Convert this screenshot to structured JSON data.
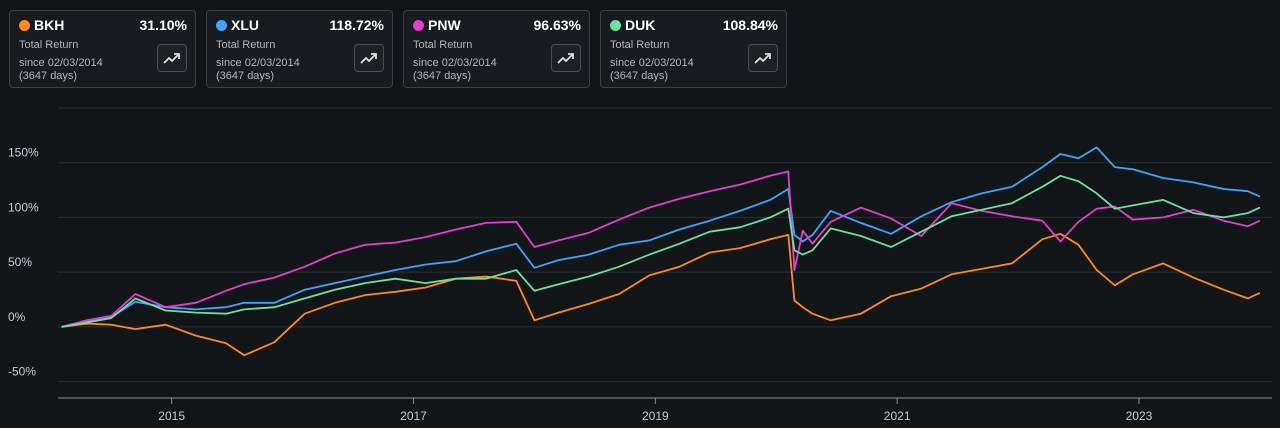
{
  "cards": [
    {
      "ticker": "BKH",
      "return": "31.10%",
      "label": "Total Return",
      "since": "since 02/03/2014",
      "days": "(3647 days)",
      "color": "#ff8a1f"
    },
    {
      "ticker": "XLU",
      "return": "118.72%",
      "label": "Total Return",
      "since": "since 02/03/2014",
      "days": "(3647 days)",
      "color": "#3fa3ff"
    },
    {
      "ticker": "PNW",
      "return": "96.63%",
      "label": "Total Return",
      "since": "since 02/03/2014",
      "days": "(3647 days)",
      "color": "#e040d0"
    },
    {
      "ticker": "DUK",
      "return": "108.84%",
      "label": "Total Return",
      "since": "since 02/03/2014",
      "days": "(3647 days)",
      "color": "#6ee0a0"
    }
  ],
  "chart_data": {
    "type": "line",
    "x": [
      2014.09,
      2014.3,
      2014.5,
      2014.7,
      2014.95,
      2015.2,
      2015.45,
      2015.6,
      2015.85,
      2016.1,
      2016.35,
      2016.6,
      2016.85,
      2017.1,
      2017.35,
      2017.6,
      2017.85,
      2018.0,
      2018.2,
      2018.45,
      2018.7,
      2018.95,
      2019.2,
      2019.45,
      2019.7,
      2019.95,
      2020.1,
      2020.15,
      2020.22,
      2020.3,
      2020.45,
      2020.7,
      2020.95,
      2021.2,
      2021.45,
      2021.7,
      2021.95,
      2022.2,
      2022.35,
      2022.5,
      2022.65,
      2022.8,
      2022.95,
      2023.2,
      2023.45,
      2023.7,
      2023.9,
      2024.0
    ],
    "series": [
      {
        "name": "BKH",
        "color": "#ff8a1f",
        "values": [
          0,
          3,
          2,
          -2,
          2,
          -8,
          -15,
          -26,
          -14,
          12,
          22,
          29,
          32,
          36,
          44,
          46,
          42,
          6,
          13,
          21,
          30,
          47,
          55,
          68,
          72,
          80,
          84,
          24,
          18,
          12,
          6,
          12,
          28,
          35,
          48,
          53,
          58,
          80,
          85,
          75,
          52,
          38,
          48,
          58,
          45,
          34,
          26,
          31
        ]
      },
      {
        "name": "XLU",
        "color": "#3fa3ff",
        "values": [
          0,
          5,
          9,
          23,
          18,
          16,
          18,
          22,
          22,
          34,
          40,
          46,
          52,
          57,
          60,
          69,
          76,
          54,
          61,
          66,
          75,
          79,
          89,
          97,
          106,
          116,
          126,
          84,
          78,
          84,
          106,
          95,
          85,
          101,
          114,
          122,
          128,
          146,
          158,
          154,
          164,
          146,
          144,
          136,
          132,
          126,
          124,
          119
        ]
      },
      {
        "name": "PNW",
        "color": "#e040d0",
        "values": [
          0,
          6,
          10,
          30,
          18,
          22,
          33,
          39,
          45,
          55,
          67,
          75,
          77,
          82,
          89,
          95,
          96,
          73,
          79,
          86,
          98,
          109,
          117,
          124,
          130,
          138,
          142,
          52,
          88,
          76,
          96,
          109,
          99,
          83,
          113,
          106,
          101,
          97,
          78,
          96,
          108,
          110,
          98,
          100,
          107,
          97,
          92,
          97
        ]
      },
      {
        "name": "DUK",
        "color": "#6ee0a0",
        "values": [
          0,
          4,
          8,
          26,
          15,
          13,
          12,
          16,
          18,
          26,
          34,
          40,
          44,
          40,
          44,
          44,
          52,
          33,
          39,
          46,
          55,
          66,
          76,
          87,
          91,
          100,
          108,
          70,
          66,
          70,
          90,
          83,
          73,
          87,
          101,
          107,
          113,
          128,
          138,
          133,
          122,
          108,
          111,
          116,
          104,
          100,
          104,
          109
        ]
      }
    ],
    "x_ticks": [
      "2015",
      "2017",
      "2019",
      "2021",
      "2023"
    ],
    "x_tick_values": [
      2015,
      2017,
      2019,
      2021,
      2023
    ],
    "y_ticks": [
      "-50%",
      "0%",
      "50%",
      "100%",
      "150%"
    ],
    "y_tick_values": [
      -50,
      0,
      50,
      100,
      150
    ],
    "xlim": [
      2014.06,
      2024.1
    ],
    "ylim": [
      -65,
      200
    ],
    "grid": true,
    "legend": "top-left cards"
  }
}
